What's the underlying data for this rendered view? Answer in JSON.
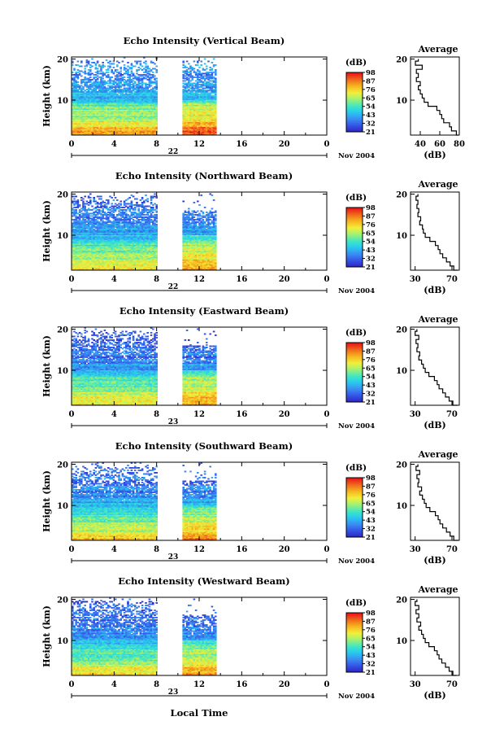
{
  "figure": {
    "footer_xlabel": "Local Time",
    "colors": {
      "colormap": [
        "#2b22b8",
        "#3550e6",
        "#3a8af2",
        "#27c7f0",
        "#3ee6c8",
        "#9ff072",
        "#f2f03a",
        "#f5b820",
        "#f26a1e",
        "#e61818"
      ]
    }
  },
  "chart_data": [
    {
      "type": "heatmap",
      "title": "Echo Intensity (Vertical Beam)",
      "ylabel": "Height (km)",
      "x_ticks": [
        "0",
        "4",
        "8",
        "12",
        "16",
        "20",
        "0"
      ],
      "x_range": [
        0,
        24
      ],
      "y_ticks": [
        "20",
        "10"
      ],
      "y_range": [
        1.5,
        20.5
      ],
      "date_day": "22",
      "date_month": "Nov 2004",
      "data_gap": [
        8.0,
        10.3
      ],
      "data_end": 13.5,
      "colorbar": {
        "label": "(dB)",
        "ticks": [
          "98",
          "87",
          "76",
          "65",
          "54",
          "43",
          "32",
          "21"
        ],
        "range": [
          21,
          98
        ]
      },
      "profile": {
        "title": "Average",
        "xlabel": "(dB)",
        "x_ticks": [
          "40",
          "60",
          "80"
        ],
        "x_range": [
          30,
          80
        ],
        "y_ticks": [
          "20",
          "10"
        ],
        "height": [
          1.5,
          2.5,
          3.5,
          4.5,
          5.5,
          6.5,
          7.5,
          8.5,
          9.5,
          10.5,
          11.5,
          12.5,
          13.5,
          14.5,
          15.5,
          16.5,
          17.5,
          18.5,
          19.5,
          20.0
        ],
        "value": [
          79,
          77,
          72,
          70,
          64,
          62,
          60,
          57,
          48,
          44,
          42,
          40,
          38,
          40,
          36,
          38,
          36,
          42,
          35,
          38
        ]
      }
    },
    {
      "type": "heatmap",
      "title": "Echo Intensity (Northward Beam)",
      "ylabel": "Height (km)",
      "x_ticks": [
        "0",
        "4",
        "8",
        "12",
        "16",
        "20",
        "0"
      ],
      "x_range": [
        0,
        24
      ],
      "y_ticks": [
        "20",
        "10"
      ],
      "y_range": [
        1.5,
        20.5
      ],
      "date_day": "22",
      "date_month": "Nov 2004",
      "data_gap": [
        8.0,
        10.3
      ],
      "data_end": 13.5,
      "colorbar": {
        "label": "(dB)",
        "ticks": [
          "98",
          "87",
          "76",
          "65",
          "54",
          "43",
          "32",
          "21"
        ],
        "range": [
          21,
          98
        ]
      },
      "profile": {
        "title": "Average",
        "xlabel": "(dB)",
        "x_ticks": [
          "30",
          "70"
        ],
        "x_range": [
          25,
          78
        ],
        "y_ticks": [
          "20",
          "10"
        ],
        "height": [
          1.5,
          2.5,
          3.5,
          4.5,
          5.5,
          6.5,
          7.5,
          8.5,
          9.5,
          10.5,
          11.5,
          12.5,
          13.5,
          14.5,
          15.5,
          16.5,
          17.5,
          18.5,
          19.5,
          20.0
        ],
        "value": [
          76,
          72,
          68,
          64,
          60,
          57,
          55,
          52,
          46,
          41,
          39,
          38,
          35,
          36,
          33,
          34,
          32,
          33,
          31,
          33
        ]
      }
    },
    {
      "type": "heatmap",
      "title": "Echo Intensity (Eastward Beam)",
      "ylabel": "Height (km)",
      "x_ticks": [
        "0",
        "4",
        "8",
        "12",
        "16",
        "20",
        "0"
      ],
      "x_range": [
        0,
        24
      ],
      "y_ticks": [
        "20",
        "10"
      ],
      "y_range": [
        1.5,
        20.5
      ],
      "date_day": "23",
      "date_month": "Nov 2004",
      "data_gap": [
        8.0,
        10.3
      ],
      "data_end": 13.5,
      "colorbar": {
        "label": "(dB)",
        "ticks": [
          "98",
          "87",
          "76",
          "65",
          "54",
          "43",
          "32",
          "21"
        ],
        "range": [
          21,
          98
        ]
      },
      "profile": {
        "title": "Average",
        "xlabel": "(dB)",
        "x_ticks": [
          "30",
          "70"
        ],
        "x_range": [
          25,
          78
        ],
        "y_ticks": [
          "20",
          "10"
        ],
        "height": [
          1.5,
          2.5,
          3.5,
          4.5,
          5.5,
          6.5,
          7.5,
          8.5,
          9.5,
          10.5,
          11.5,
          12.5,
          13.5,
          14.5,
          15.5,
          16.5,
          17.5,
          18.5,
          19.5,
          20.0
        ],
        "value": [
          76,
          71,
          67,
          63,
          60,
          56,
          54,
          51,
          45,
          41,
          39,
          37,
          34,
          35,
          32,
          33,
          31,
          34,
          30,
          32
        ]
      }
    },
    {
      "type": "heatmap",
      "title": "Echo Intensity (Southward Beam)",
      "ylabel": "Height (km)",
      "x_ticks": [
        "0",
        "4",
        "8",
        "12",
        "16",
        "20",
        "0"
      ],
      "x_range": [
        0,
        24
      ],
      "y_ticks": [
        "20",
        "10"
      ],
      "y_range": [
        1.5,
        20.5
      ],
      "date_day": "23",
      "date_month": "Nov 2004",
      "data_gap": [
        8.0,
        10.3
      ],
      "data_end": 13.5,
      "colorbar": {
        "label": "(dB)",
        "ticks": [
          "98",
          "87",
          "76",
          "65",
          "54",
          "43",
          "32",
          "21"
        ],
        "range": [
          21,
          98
        ]
      },
      "profile": {
        "title": "Average",
        "xlabel": "(dB)",
        "x_ticks": [
          "30",
          "70"
        ],
        "x_range": [
          25,
          78
        ],
        "y_ticks": [
          "20",
          "10"
        ],
        "height": [
          1.5,
          2.5,
          3.5,
          4.5,
          5.5,
          6.5,
          7.5,
          8.5,
          9.5,
          10.5,
          11.5,
          12.5,
          13.5,
          14.5,
          15.5,
          16.5,
          17.5,
          18.5,
          19.5,
          20.0
        ],
        "value": [
          77,
          72,
          68,
          64,
          60,
          57,
          55,
          52,
          46,
          42,
          40,
          38,
          35,
          37,
          33,
          34,
          32,
          35,
          31,
          33
        ]
      }
    },
    {
      "type": "heatmap",
      "title": "Echo Intensity (Westward Beam)",
      "ylabel": "Height (km)",
      "x_ticks": [
        "0",
        "4",
        "8",
        "12",
        "16",
        "20",
        "0"
      ],
      "x_range": [
        0,
        24
      ],
      "y_ticks": [
        "20",
        "10"
      ],
      "y_range": [
        1.5,
        20.5
      ],
      "date_day": "23",
      "date_month": "Nov 2004",
      "data_gap": [
        8.0,
        10.3
      ],
      "data_end": 13.5,
      "colorbar": {
        "label": "(dB)",
        "ticks": [
          "98",
          "87",
          "76",
          "65",
          "54",
          "43",
          "32",
          "21"
        ],
        "range": [
          21,
          98
        ]
      },
      "profile": {
        "title": "Average",
        "xlabel": "(dB)",
        "x_ticks": [
          "30",
          "70"
        ],
        "x_range": [
          25,
          78
        ],
        "y_ticks": [
          "20",
          "10"
        ],
        "height": [
          1.5,
          2.5,
          3.5,
          4.5,
          5.5,
          6.5,
          7.5,
          8.5,
          9.5,
          10.5,
          11.5,
          12.5,
          13.5,
          14.5,
          15.5,
          16.5,
          17.5,
          18.5,
          19.5,
          20.0
        ],
        "value": [
          75,
          71,
          67,
          63,
          59,
          56,
          54,
          51,
          45,
          41,
          39,
          37,
          34,
          36,
          32,
          34,
          31,
          34,
          30,
          32
        ]
      }
    }
  ]
}
